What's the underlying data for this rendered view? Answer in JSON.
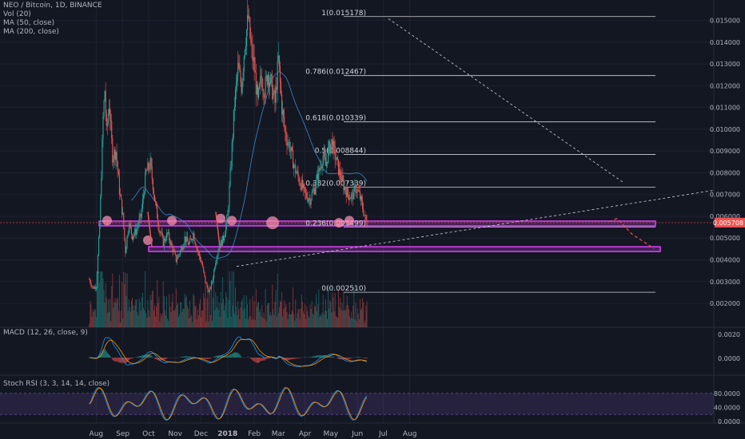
{
  "legend": {
    "symbol": "NEO / Bitcoin, 1D, BINANCE",
    "vol": "Vol (20)",
    "ma50": "MA (50, close)",
    "ma200": "MA (200, close)"
  },
  "macd_label": "MACD (12, 26, close, 9)",
  "stoch_label": "Stoch RSI (3, 3, 14, 14, close)",
  "price_badge": "0.005708",
  "colors": {
    "background": "#131722",
    "up": "#26a69a",
    "down": "#ef5350",
    "zone": "#e040fb",
    "circle": "#f48fb1",
    "ma50": "#42a5f5",
    "macd": "#2196f3",
    "signal": "#ff9800",
    "stoch_k": "#2196f3",
    "stoch_d": "#ff9800",
    "stoch_band": "#7e57c2",
    "price_badge": "#ef5350"
  },
  "chart_data": {
    "type": "candlestick",
    "x_ticks": [
      "Aug",
      "Sep",
      "Oct",
      "Nov",
      "Dec",
      "2018",
      "Feb",
      "Mar",
      "Apr",
      "May",
      "Jun",
      "Jul",
      "Aug"
    ],
    "y_ticks": [
      "0.015000",
      "0.014000",
      "0.013000",
      "0.012000",
      "0.011000",
      "0.010000",
      "0.009000",
      "0.008000",
      "0.007000",
      "0.006000",
      "0.005000",
      "0.004000",
      "0.003000",
      "0.002000"
    ],
    "ylim": [
      0.0009,
      0.0155
    ],
    "fib_levels": [
      {
        "label": "1(0.015178)",
        "value": 0.015178
      },
      {
        "label": "0.786(0.012467)",
        "value": 0.012467
      },
      {
        "label": "0.618(0.010339)",
        "value": 0.010339
      },
      {
        "label": "0.5(0.008844)",
        "value": 0.008844
      },
      {
        "label": "0.382(0.007339)",
        "value": 0.007339
      },
      {
        "label": "0.236(0.005499)",
        "value": 0.005499
      },
      {
        "label": "0(0.002510)",
        "value": 0.00251
      }
    ],
    "zones": [
      [
        0.00556,
        0.00578
      ],
      [
        0.00438,
        0.0046
      ]
    ],
    "close_path": [
      [
        "2017-07-24",
        0.0031
      ],
      [
        "2017-07-28",
        0.0027
      ],
      [
        "2017-08-01",
        0.0028
      ],
      [
        "2017-08-05",
        0.0055
      ],
      [
        "2017-08-09",
        0.0105
      ],
      [
        "2017-08-11",
        0.0118
      ],
      [
        "2017-08-13",
        0.0098
      ],
      [
        "2017-08-16",
        0.0112
      ],
      [
        "2017-08-20",
        0.0088
      ],
      [
        "2017-08-24",
        0.009
      ],
      [
        "2017-08-28",
        0.0072
      ],
      [
        "2017-09-01",
        0.006
      ],
      [
        "2017-09-04",
        0.0044
      ],
      [
        "2017-09-08",
        0.0057
      ],
      [
        "2017-09-12",
        0.0051
      ],
      [
        "2017-09-16",
        0.0053
      ],
      [
        "2017-09-22",
        0.006
      ],
      [
        "2017-09-28",
        0.008
      ],
      [
        "2017-10-03",
        0.0084
      ],
      [
        "2017-10-08",
        0.0068
      ],
      [
        "2017-10-13",
        0.0055
      ],
      [
        "2017-10-18",
        0.0048
      ],
      [
        "2017-10-23",
        0.0052
      ],
      [
        "2017-10-28",
        0.0046
      ],
      [
        "2017-11-02",
        0.004
      ],
      [
        "2017-11-07",
        0.0044
      ],
      [
        "2017-11-12",
        0.005
      ],
      [
        "2017-11-17",
        0.0047
      ],
      [
        "2017-11-22",
        0.0052
      ],
      [
        "2017-11-27",
        0.0044
      ],
      [
        "2017-12-02",
        0.0038
      ],
      [
        "2017-12-06",
        0.003
      ],
      [
        "2017-12-10",
        0.0025
      ],
      [
        "2017-12-14",
        0.003
      ],
      [
        "2017-12-18",
        0.004
      ],
      [
        "2017-12-22",
        0.0046
      ],
      [
        "2017-12-27",
        0.005
      ],
      [
        "2018-01-01",
        0.006
      ],
      [
        "2018-01-05",
        0.0085
      ],
      [
        "2018-01-09",
        0.0112
      ],
      [
        "2018-01-13",
        0.0128
      ],
      [
        "2018-01-17",
        0.012
      ],
      [
        "2018-01-21",
        0.014
      ],
      [
        "2018-01-25",
        0.0151
      ],
      [
        "2018-01-28",
        0.0138
      ],
      [
        "2018-02-01",
        0.0128
      ],
      [
        "2018-02-05",
        0.0112
      ],
      [
        "2018-02-09",
        0.0124
      ],
      [
        "2018-02-13",
        0.0118
      ],
      [
        "2018-02-17",
        0.0126
      ],
      [
        "2018-02-21",
        0.012
      ],
      [
        "2018-02-25",
        0.0112
      ],
      [
        "2018-03-01",
        0.0132
      ],
      [
        "2018-03-05",
        0.011
      ],
      [
        "2018-03-09",
        0.0098
      ],
      [
        "2018-03-14",
        0.0092
      ],
      [
        "2018-03-20",
        0.0082
      ],
      [
        "2018-03-26",
        0.0076
      ],
      [
        "2018-04-01",
        0.007
      ],
      [
        "2018-04-07",
        0.0068
      ],
      [
        "2018-04-12",
        0.0073
      ],
      [
        "2018-04-17",
        0.008
      ],
      [
        "2018-04-22",
        0.0088
      ],
      [
        "2018-04-25",
        0.0083
      ],
      [
        "2018-04-28",
        0.009
      ],
      [
        "2018-05-02",
        0.0094
      ],
      [
        "2018-05-06",
        0.0088
      ],
      [
        "2018-05-11",
        0.008
      ],
      [
        "2018-05-16",
        0.0074
      ],
      [
        "2018-05-21",
        0.007
      ],
      [
        "2018-05-26",
        0.0069
      ],
      [
        "2018-05-30",
        0.0073
      ],
      [
        "2018-06-03",
        0.007
      ],
      [
        "2018-06-07",
        0.0064
      ],
      [
        "2018-06-10",
        0.0059
      ],
      [
        "2018-06-12",
        0.0057
      ]
    ]
  }
}
